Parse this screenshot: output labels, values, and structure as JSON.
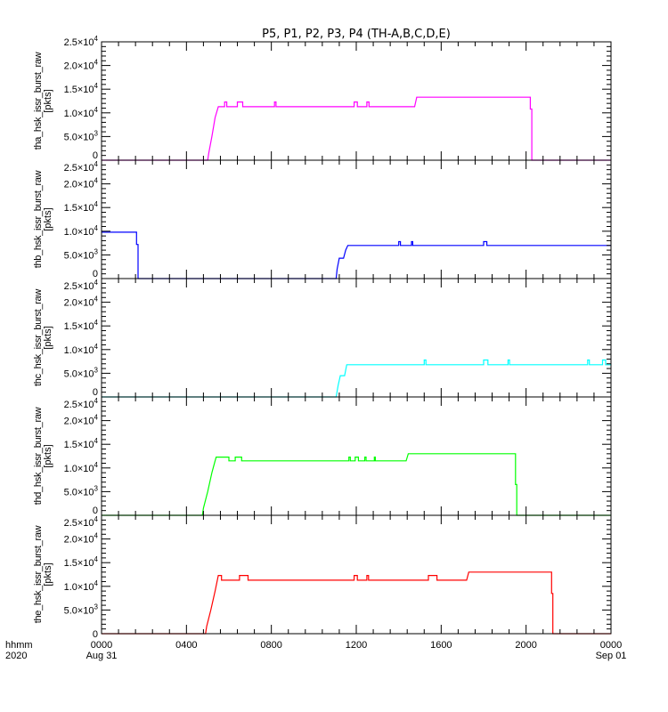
{
  "chart_data": {
    "type": "line",
    "title": "P5, P1, P2, P3, P4 (TH-A,B,C,D,E)",
    "xlabel_rows": [
      "hhmm",
      "2020"
    ],
    "xlim_hours": [
      0,
      24
    ],
    "xticks": [
      {
        "h": 0,
        "l1": "0000",
        "l2": "Aug 31"
      },
      {
        "h": 4,
        "l1": "0400",
        "l2": ""
      },
      {
        "h": 8,
        "l1": "0800",
        "l2": ""
      },
      {
        "h": 12,
        "l1": "1200",
        "l2": ""
      },
      {
        "h": 16,
        "l1": "1600",
        "l2": ""
      },
      {
        "h": 20,
        "l1": "2000",
        "l2": ""
      },
      {
        "h": 24,
        "l1": "0000",
        "l2": "Sep 01"
      }
    ],
    "ylim": [
      0,
      25000
    ],
    "yticks": [
      {
        "v": 0,
        "m": "0",
        "e": ""
      },
      {
        "v": 5000,
        "m": "5.0×10",
        "e": "3"
      },
      {
        "v": 10000,
        "m": "1.0×10",
        "e": "4"
      },
      {
        "v": 15000,
        "m": "1.5×10",
        "e": "4"
      },
      {
        "v": 20000,
        "m": "2.0×10",
        "e": "4"
      },
      {
        "v": 25000,
        "m": "2.5×10",
        "e": "4"
      }
    ],
    "units": "[pkts]",
    "series": [
      {
        "name": "tha_hsk_issr_burst_raw",
        "color": "#ff00ff",
        "points": [
          [
            0,
            0
          ],
          [
            5.0,
            0
          ],
          [
            5.05,
            1500
          ],
          [
            5.2,
            5000
          ],
          [
            5.35,
            9000
          ],
          [
            5.5,
            11300
          ],
          [
            5.8,
            11300
          ],
          [
            5.8,
            12300
          ],
          [
            5.9,
            12300
          ],
          [
            5.9,
            11300
          ],
          [
            6.4,
            11300
          ],
          [
            6.4,
            12300
          ],
          [
            6.65,
            12300
          ],
          [
            6.65,
            11300
          ],
          [
            8.15,
            11300
          ],
          [
            8.15,
            12300
          ],
          [
            8.22,
            12300
          ],
          [
            8.22,
            11300
          ],
          [
            11.9,
            11300
          ],
          [
            11.9,
            12300
          ],
          [
            12.05,
            12300
          ],
          [
            12.05,
            11300
          ],
          [
            12.5,
            11300
          ],
          [
            12.5,
            12300
          ],
          [
            12.6,
            12300
          ],
          [
            12.6,
            11300
          ],
          [
            14.75,
            11300
          ],
          [
            14.85,
            13300
          ],
          [
            20.2,
            13300
          ],
          [
            20.2,
            10800
          ],
          [
            20.27,
            10800
          ],
          [
            20.27,
            0
          ],
          [
            24,
            0
          ]
        ]
      },
      {
        "name": "thb_hsk_issr_burst_raw",
        "color": "#0000ff",
        "points": [
          [
            0,
            9800
          ],
          [
            1.65,
            9800
          ],
          [
            1.65,
            7200
          ],
          [
            1.72,
            7200
          ],
          [
            1.72,
            0
          ],
          [
            11.05,
            0
          ],
          [
            11.1,
            2000
          ],
          [
            11.2,
            4300
          ],
          [
            11.4,
            4300
          ],
          [
            11.5,
            6000
          ],
          [
            11.6,
            7000
          ],
          [
            14.0,
            7000
          ],
          [
            14.0,
            7800
          ],
          [
            14.08,
            7800
          ],
          [
            14.08,
            7000
          ],
          [
            14.6,
            7000
          ],
          [
            14.6,
            7800
          ],
          [
            14.66,
            7800
          ],
          [
            14.66,
            7000
          ],
          [
            18.0,
            7000
          ],
          [
            18.0,
            7800
          ],
          [
            18.15,
            7800
          ],
          [
            18.15,
            7000
          ],
          [
            24,
            7000
          ]
        ]
      },
      {
        "name": "thc_hsk_issr_burst_raw",
        "color": "#00ffff",
        "points": [
          [
            0,
            0
          ],
          [
            11.05,
            0
          ],
          [
            11.15,
            2500
          ],
          [
            11.25,
            4500
          ],
          [
            11.45,
            4500
          ],
          [
            11.55,
            6800
          ],
          [
            15.2,
            6800
          ],
          [
            15.2,
            7800
          ],
          [
            15.28,
            7800
          ],
          [
            15.28,
            6800
          ],
          [
            18.0,
            6800
          ],
          [
            18.0,
            7800
          ],
          [
            18.2,
            7800
          ],
          [
            18.2,
            6800
          ],
          [
            19.15,
            6800
          ],
          [
            19.15,
            7800
          ],
          [
            19.22,
            7800
          ],
          [
            19.22,
            6800
          ],
          [
            22.9,
            6800
          ],
          [
            22.9,
            7800
          ],
          [
            22.98,
            7800
          ],
          [
            22.98,
            6800
          ],
          [
            23.6,
            6800
          ],
          [
            23.6,
            7800
          ],
          [
            23.75,
            7800
          ],
          [
            23.75,
            6800
          ],
          [
            24,
            6800
          ]
        ]
      },
      {
        "name": "thd_hsk_issr_burst_raw",
        "color": "#00ff00",
        "points": [
          [
            0,
            0
          ],
          [
            4.75,
            0
          ],
          [
            4.8,
            1500
          ],
          [
            5.0,
            5000
          ],
          [
            5.2,
            9000
          ],
          [
            5.35,
            11500
          ],
          [
            5.4,
            12300
          ],
          [
            6.0,
            12300
          ],
          [
            6.0,
            11500
          ],
          [
            6.3,
            11500
          ],
          [
            6.3,
            12300
          ],
          [
            6.6,
            12300
          ],
          [
            6.6,
            11500
          ],
          [
            11.65,
            11500
          ],
          [
            11.65,
            12300
          ],
          [
            11.72,
            12300
          ],
          [
            11.72,
            11500
          ],
          [
            11.95,
            11500
          ],
          [
            11.95,
            12300
          ],
          [
            12.1,
            12300
          ],
          [
            12.1,
            11500
          ],
          [
            12.4,
            11500
          ],
          [
            12.4,
            12300
          ],
          [
            12.46,
            12300
          ],
          [
            12.46,
            11500
          ],
          [
            12.85,
            11500
          ],
          [
            12.85,
            12300
          ],
          [
            12.9,
            12300
          ],
          [
            12.9,
            11500
          ],
          [
            14.35,
            11500
          ],
          [
            14.45,
            13000
          ],
          [
            19.5,
            13000
          ],
          [
            19.5,
            6500
          ],
          [
            19.56,
            6500
          ],
          [
            19.56,
            0
          ],
          [
            24,
            0
          ]
        ]
      },
      {
        "name": "the_hsk_issr_burst_raw",
        "color": "#ff0000",
        "points": [
          [
            0,
            0
          ],
          [
            4.9,
            0
          ],
          [
            4.95,
            1500
          ],
          [
            5.15,
            5000
          ],
          [
            5.35,
            9000
          ],
          [
            5.5,
            12300
          ],
          [
            5.65,
            12300
          ],
          [
            5.65,
            11300
          ],
          [
            6.5,
            11300
          ],
          [
            6.5,
            12300
          ],
          [
            6.9,
            12300
          ],
          [
            6.9,
            11300
          ],
          [
            11.9,
            11300
          ],
          [
            11.9,
            12300
          ],
          [
            12.05,
            12300
          ],
          [
            12.05,
            11300
          ],
          [
            12.5,
            11300
          ],
          [
            12.5,
            12300
          ],
          [
            12.58,
            12300
          ],
          [
            12.58,
            11300
          ],
          [
            15.4,
            11300
          ],
          [
            15.4,
            12300
          ],
          [
            15.8,
            12300
          ],
          [
            15.8,
            11300
          ],
          [
            17.2,
            11300
          ],
          [
            17.3,
            13000
          ],
          [
            21.2,
            13000
          ],
          [
            21.2,
            8500
          ],
          [
            21.26,
            8500
          ],
          [
            21.26,
            0
          ],
          [
            24,
            0
          ]
        ]
      }
    ]
  }
}
